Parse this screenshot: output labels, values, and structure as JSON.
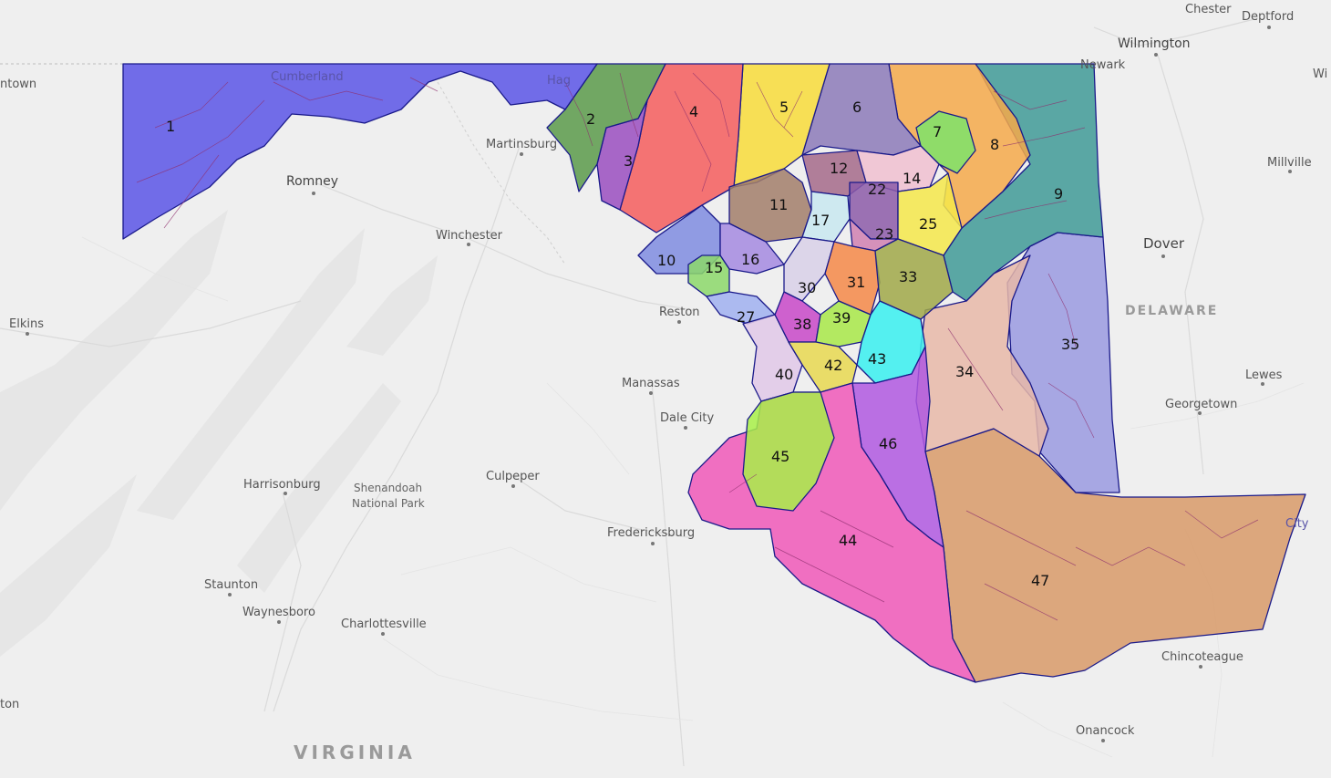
{
  "places": {
    "chester": "Chester",
    "deptford": "Deptford",
    "wilmington": "Wilmington",
    "newark": "Newark",
    "millville": "Millville",
    "dover": "Dover",
    "delaware": "DELAWARE",
    "lewes": "Lewes",
    "georgetown": "Georgetown",
    "chincoteague": "Chincoteague",
    "onancock": "Onancock",
    "virginia": "VIRGINIA",
    "fredericksburg": "Fredericksburg",
    "culpeper": "Culpeper",
    "dale_city": "Dale City",
    "manassas": "Manassas",
    "reston": "Reston",
    "winchester": "Winchester",
    "martinsburg": "Martinsburg",
    "romney": "Romney",
    "cumberland": "Cumberland",
    "hagerstown": "Hag",
    "elkins": "Elkins",
    "harrisonburg": "Harrisonburg",
    "shenandoah_1": "Shenandoah",
    "shenandoah_2": "National Park",
    "staunton": "Staunton",
    "waynesboro": "Waynesboro",
    "charlottesville": "Charlottesville",
    "ntown": "ntown",
    "ton": "ton",
    "wi": "Wi",
    "city": "City"
  },
  "districts": [
    {
      "label": "1",
      "color": "#5a55e6"
    },
    {
      "label": "2",
      "color": "#5a9a4a"
    },
    {
      "label": "3",
      "color": "#9a4dc0"
    },
    {
      "label": "4",
      "color": "#f45d5d"
    },
    {
      "label": "5",
      "color": "#f8dc3a"
    },
    {
      "label": "6",
      "color": "#8c7ab8"
    },
    {
      "label": "7",
      "color": "#7de36a"
    },
    {
      "label": "8",
      "color": "#f4a94a"
    },
    {
      "label": "9",
      "color": "#3f9a96"
    },
    {
      "label": "10",
      "color": "#7f8ce0"
    },
    {
      "label": "11",
      "color": "#a27e6a"
    },
    {
      "label": "12",
      "color": "#a46a8a"
    },
    {
      "label": "14",
      "color": "#f0c0d0"
    },
    {
      "label": "15",
      "color": "#8cd86a"
    },
    {
      "label": "16",
      "color": "#a48ae0"
    },
    {
      "label": "17",
      "color": "#c8e8f0"
    },
    {
      "label": "22",
      "color": "#8c5aa8"
    },
    {
      "label": "23",
      "color": "#d080b0"
    },
    {
      "label": "25",
      "color": "#f4e84a"
    },
    {
      "label": "27",
      "color": "#a0b0f0"
    },
    {
      "label": "30",
      "color": "#d8d0e8"
    },
    {
      "label": "31",
      "color": "#f48848"
    },
    {
      "label": "33",
      "color": "#a0a848"
    },
    {
      "label": "34",
      "color": "#e8b8a8"
    },
    {
      "label": "35",
      "color": "#9a9ae0"
    },
    {
      "label": "38",
      "color": "#c848c8"
    },
    {
      "label": "39",
      "color": "#a8e848"
    },
    {
      "label": "40",
      "color": "#e0c8e8"
    },
    {
      "label": "42",
      "color": "#e8d850"
    },
    {
      "label": "43",
      "color": "#38f0f0"
    },
    {
      "label": "44",
      "color": "#f058b8"
    },
    {
      "label": "45",
      "color": "#a8f048"
    },
    {
      "label": "46",
      "color": "#b058e0"
    },
    {
      "label": "47",
      "color": "#d89a68"
    }
  ]
}
